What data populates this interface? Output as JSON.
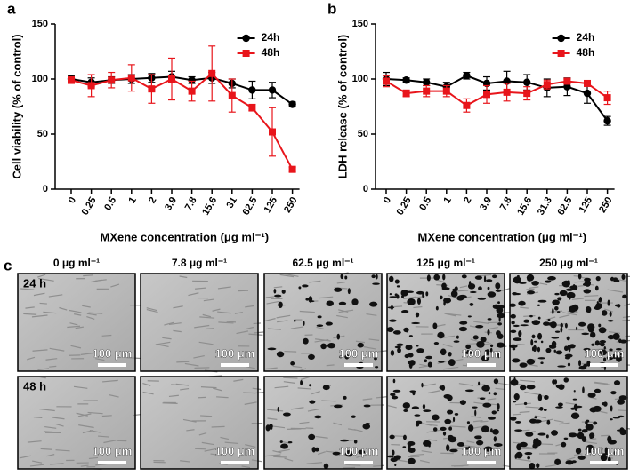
{
  "chart_data": [
    {
      "type": "line",
      "panel": "a",
      "ylabel": "Cell viability (% of control)",
      "xlabel": "MXene concentration (μg ml⁻¹)",
      "categories": [
        "0",
        "0.25",
        "0.5",
        "1",
        "2",
        "3.9",
        "7.8",
        "15.6",
        "31",
        "62.5",
        "125",
        "250"
      ],
      "ylim": [
        0,
        150
      ],
      "yticks": [
        0,
        50,
        100,
        150
      ],
      "legend": "top-right",
      "series": [
        {
          "name": "24h",
          "color": "#000000",
          "marker": "circle",
          "values": [
            100,
            97,
            99,
            100,
            101,
            102,
            99,
            101,
            96,
            90,
            90,
            77
          ],
          "errors": [
            3,
            4,
            3,
            4,
            4,
            5,
            3,
            5,
            4,
            8,
            7,
            2
          ]
        },
        {
          "name": "48h",
          "color": "#e8151b",
          "marker": "square",
          "values": [
            99,
            94,
            99,
            101,
            91,
            100,
            89,
            105,
            85,
            74,
            52,
            18
          ],
          "errors": [
            3,
            10,
            7,
            12,
            13,
            19,
            9,
            25,
            15,
            3,
            22,
            2
          ]
        }
      ]
    },
    {
      "type": "line",
      "panel": "b",
      "ylabel": "LDH release (% of control)",
      "xlabel": "MXene concentration (μg ml⁻¹)",
      "categories": [
        "0",
        "0.25",
        "0.5",
        "1",
        "2",
        "3.9",
        "7.8",
        "15.6",
        "31.3",
        "62.5",
        "125",
        "250"
      ],
      "ylim": [
        0,
        150
      ],
      "yticks": [
        0,
        50,
        100,
        150
      ],
      "legend": "top-right",
      "series": [
        {
          "name": "24h",
          "color": "#000000",
          "marker": "circle",
          "values": [
            100,
            99,
            97,
            93,
            103,
            96,
            98,
            97,
            92,
            93,
            87,
            62
          ],
          "errors": [
            6,
            2,
            3,
            4,
            3,
            6,
            9,
            7,
            8,
            8,
            9,
            4
          ]
        },
        {
          "name": "48h",
          "color": "#e8151b",
          "marker": "square",
          "values": [
            98,
            87,
            89,
            89,
            76,
            86,
            88,
            87,
            95,
            98,
            96,
            83
          ],
          "errors": [
            5,
            3,
            5,
            5,
            6,
            8,
            8,
            6,
            4,
            2,
            2,
            6
          ]
        }
      ]
    }
  ],
  "panel_c": {
    "label": "c",
    "columns": [
      "0 μg ml⁻¹",
      "7.8 μg ml⁻¹",
      "62.5 μg ml⁻¹",
      "125 μg ml⁻¹",
      "250 μg ml⁻¹"
    ],
    "rows": [
      "24 h",
      "48 h"
    ],
    "scale_bar": "100 μm"
  }
}
